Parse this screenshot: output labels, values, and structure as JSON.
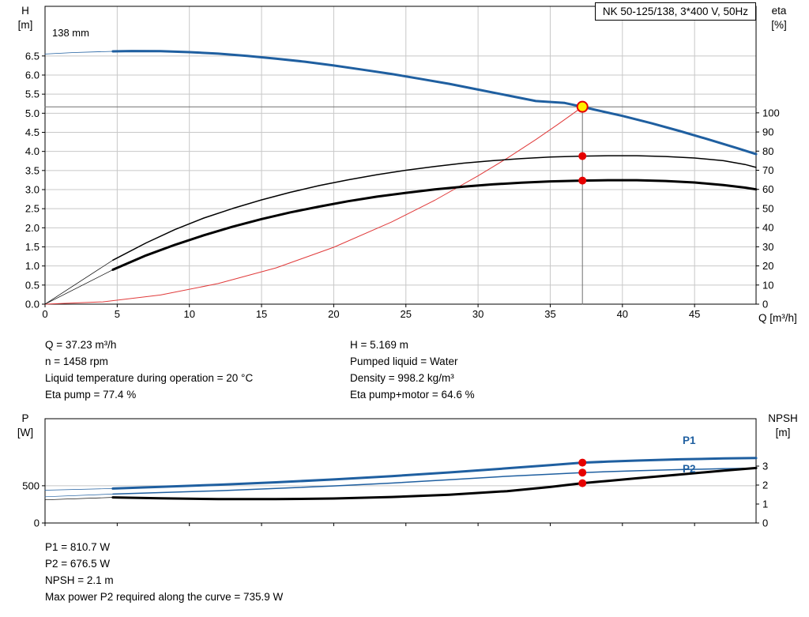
{
  "colors": {
    "pump_blue": "#1f5fa0",
    "curve_black": "#000000",
    "system_red": "#e03a3a",
    "dot_red": "#e60000",
    "duty_yellow": "#ffee00",
    "grid": "#c8c8c8",
    "axis": "#000000",
    "crosshair": "#707070"
  },
  "top_chart": {
    "impeller_label": "138 mm",
    "axis_left_title": [
      "H",
      "[m]"
    ],
    "axis_right_title": [
      "eta",
      "[%]"
    ],
    "axis_x_title": "Q [m³/h]"
  },
  "bottom_chart": {
    "axis_left_title": [
      "P",
      "[W]"
    ],
    "axis_right_title": [
      "NPSH",
      "[m]"
    ],
    "p1_label": "P1",
    "p2_label": "P2"
  },
  "info": {
    "left": [
      "Q = 37.23 m³/h",
      "n = 1458 rpm",
      "Liquid temperature during operation = 20 °C",
      "Eta pump = 77.4 %"
    ],
    "right": [
      "H = 5.169 m",
      "Pumped liquid = Water",
      "Density = 998.2 kg/m³",
      "Eta pump+motor = 64.6 %"
    ]
  },
  "results": [
    "P1 = 810.7 W",
    "P2 = 676.5 W",
    "NPSH = 2.1 m",
    "Max power P2 required along the curve = 735.9 W"
  ],
  "chart_data": [
    {
      "type": "line",
      "name": "qh-eta-chart",
      "title": "NK 50-125/138, 3*400 V, 50Hz",
      "xlabel": "Q [m³/h]",
      "ylabel_left": "H [m]",
      "ylabel_right": "eta [%]",
      "xlim": [
        0,
        49.26
      ],
      "ylim_left": [
        0,
        7.8
      ],
      "ylim_right": [
        0,
        155.7
      ],
      "duty_point": {
        "Q": 37.23,
        "H": 5.169,
        "eta_pump": 77.4,
        "eta_pump_motor": 64.6
      },
      "x_ticks": {
        "values": [
          0,
          5,
          10,
          15,
          20,
          25,
          30,
          35,
          40,
          45
        ],
        "labels": [
          "0",
          "5",
          "10",
          "15",
          "20",
          "25",
          "30",
          "35",
          "40",
          "45"
        ]
      },
      "y_ticks_left": {
        "values": [
          0,
          0.5,
          1,
          1.5,
          2,
          2.5,
          3,
          3.5,
          4,
          4.5,
          5,
          5.5,
          6,
          6.5
        ],
        "labels": [
          "0.0",
          "0.5",
          "1.0",
          "1.5",
          "2.0",
          "2.5",
          "3.0",
          "3.5",
          "4.0",
          "4.5",
          "5.0",
          "5.5",
          "6.0",
          "6.5"
        ]
      },
      "y_ticks_right": {
        "values": [
          0,
          10,
          20,
          30,
          40,
          50,
          60,
          70,
          80,
          90,
          100
        ],
        "labels": [
          "0",
          "10",
          "20",
          "30",
          "40",
          "50",
          "60",
          "70",
          "80",
          "90",
          "100"
        ]
      },
      "grid_x": [
        5,
        10,
        15,
        20,
        25,
        30,
        35,
        40,
        45
      ],
      "grid_y": [
        0.5,
        1,
        1.5,
        2,
        2.5,
        3,
        3.5,
        4,
        4.5,
        5,
        5.5,
        6,
        6.5
      ],
      "series": [
        {
          "name": "duty-vline",
          "axis": "left",
          "color": "crosshair",
          "width": 1,
          "points": [
            [
              37.23,
              0
            ],
            [
              37.23,
              5.169
            ]
          ]
        },
        {
          "name": "duty-hline",
          "axis": "left",
          "color": "crosshair",
          "width": 1,
          "points": [
            [
              0,
              5.169
            ],
            [
              49.26,
              5.169
            ]
          ]
        },
        {
          "name": "system-curve",
          "axis": "left",
          "color": "system_red",
          "width": 1,
          "points": [
            [
              0,
              0
            ],
            [
              4,
              0.06
            ],
            [
              8,
              0.24
            ],
            [
              12,
              0.54
            ],
            [
              16,
              0.95
            ],
            [
              20,
              1.49
            ],
            [
              24,
              2.15
            ],
            [
              27,
              2.72
            ],
            [
              30,
              3.36
            ],
            [
              32,
              3.82
            ],
            [
              34,
              4.31
            ],
            [
              35.5,
              4.7
            ],
            [
              36.5,
              4.97
            ],
            [
              37.23,
              5.169
            ]
          ]
        },
        {
          "name": "eta-pump-extension",
          "axis": "right",
          "color": "curve_black",
          "width": 0.7,
          "points": [
            [
              0,
              0
            ],
            [
              4.7,
              23
            ]
          ]
        },
        {
          "name": "eta-pump-curve",
          "axis": "right",
          "color": "curve_black",
          "width": 1.5,
          "points": [
            [
              4.7,
              23
            ],
            [
              7,
              32
            ],
            [
              9,
              39
            ],
            [
              11,
              45
            ],
            [
              13,
              50
            ],
            [
              15,
              54.5
            ],
            [
              17,
              58.5
            ],
            [
              19,
              62
            ],
            [
              21,
              65
            ],
            [
              23,
              67.7
            ],
            [
              25,
              70
            ],
            [
              27,
              72
            ],
            [
              29,
              73.7
            ],
            [
              31,
              75
            ],
            [
              33,
              76.1
            ],
            [
              35,
              76.9
            ],
            [
              37.23,
              77.4
            ],
            [
              39,
              77.6
            ],
            [
              41,
              77.6
            ],
            [
              43,
              77.2
            ],
            [
              45,
              76.4
            ],
            [
              47,
              75
            ],
            [
              48.5,
              73
            ],
            [
              49.26,
              71.5
            ]
          ]
        },
        {
          "name": "eta-pump-motor-extension",
          "axis": "right",
          "color": "curve_black",
          "width": 0.7,
          "points": [
            [
              0,
              0
            ],
            [
              4.7,
              18
            ]
          ]
        },
        {
          "name": "eta-pump-motor-curve",
          "axis": "right",
          "color": "curve_black",
          "width": 3,
          "points": [
            [
              4.7,
              18
            ],
            [
              7,
              25.5
            ],
            [
              9,
              31
            ],
            [
              11,
              36
            ],
            [
              13,
              40.5
            ],
            [
              15,
              44.5
            ],
            [
              17,
              48
            ],
            [
              19,
              51
            ],
            [
              21,
              53.8
            ],
            [
              23,
              56.2
            ],
            [
              25,
              58.2
            ],
            [
              27,
              60
            ],
            [
              29,
              61.4
            ],
            [
              31,
              62.6
            ],
            [
              33,
              63.5
            ],
            [
              35,
              64.2
            ],
            [
              37.23,
              64.6
            ],
            [
              39,
              64.8
            ],
            [
              41,
              64.8
            ],
            [
              43,
              64.4
            ],
            [
              45,
              63.6
            ],
            [
              47,
              62.3
            ],
            [
              48.5,
              60.9
            ],
            [
              49.26,
              60
            ]
          ]
        },
        {
          "name": "pump-curve-extension",
          "axis": "left",
          "color": "pump_blue",
          "width": 0.8,
          "points": [
            [
              0,
              6.55
            ],
            [
              2,
              6.59
            ],
            [
              4.7,
              6.62
            ]
          ]
        },
        {
          "name": "pump-curve-138mm",
          "axis": "left",
          "color": "pump_blue",
          "width": 3,
          "points": [
            [
              4.7,
              6.62
            ],
            [
              6,
              6.63
            ],
            [
              8,
              6.625
            ],
            [
              10,
              6.6
            ],
            [
              12,
              6.56
            ],
            [
              14,
              6.5
            ],
            [
              16,
              6.43
            ],
            [
              18,
              6.35
            ],
            [
              20,
              6.25
            ],
            [
              22,
              6.14
            ],
            [
              24,
              6.03
            ],
            [
              26,
              5.9
            ],
            [
              28,
              5.77
            ],
            [
              30,
              5.62
            ],
            [
              32,
              5.47
            ],
            [
              34,
              5.32
            ],
            [
              36,
              5.27
            ],
            [
              37.23,
              5.169
            ],
            [
              38,
              5.1
            ],
            [
              40,
              4.93
            ],
            [
              42,
              4.74
            ],
            [
              44,
              4.53
            ],
            [
              46,
              4.31
            ],
            [
              48,
              4.08
            ],
            [
              49.26,
              3.93
            ]
          ]
        }
      ],
      "markers": [
        {
          "name": "eta-pump-duty-dot",
          "axis": "right",
          "x": 37.23,
          "y": 77.4,
          "r": 5,
          "fill": "dot_red"
        },
        {
          "name": "eta-pump-motor-duty-dot",
          "axis": "right",
          "x": 37.23,
          "y": 64.6,
          "r": 5,
          "fill": "dot_red"
        },
        {
          "name": "duty-point-marker",
          "axis": "left",
          "x": 37.23,
          "y": 5.169,
          "r": 6.5,
          "fill": "duty_yellow",
          "stroke": "dot_red",
          "stroke_width": 2
        }
      ]
    },
    {
      "type": "line",
      "name": "power-npsh-chart",
      "title": "",
      "xlabel": "",
      "ylabel_left": "P [W]",
      "ylabel_right": "NPSH [m]",
      "xlim": [
        0,
        49.26
      ],
      "ylim_left": [
        0,
        1400
      ],
      "ylim_right": [
        0,
        5.5
      ],
      "duty_point": {
        "Q": 37.23,
        "P1": 810.7,
        "P2": 676.5,
        "NPSH": 2.1
      },
      "x_ticks": {
        "values": [
          0,
          5,
          10,
          15,
          20,
          25,
          30,
          35,
          40,
          45
        ],
        "labels": []
      },
      "y_ticks_left": {
        "values": [
          0,
          500
        ],
        "labels": [
          "0",
          "500"
        ]
      },
      "y_ticks_right": {
        "values": [
          0,
          1,
          2,
          3
        ],
        "labels": [
          "0",
          "1",
          "2",
          "3"
        ]
      },
      "grid_x": [],
      "grid_y": [
        500
      ],
      "series": [
        {
          "name": "p1-extension",
          "axis": "left",
          "color": "pump_blue",
          "width": 0.7,
          "points": [
            [
              0,
              440
            ],
            [
              4.7,
              462
            ]
          ]
        },
        {
          "name": "p2-extension",
          "axis": "left",
          "color": "pump_blue",
          "width": 0.7,
          "points": [
            [
              0,
              352
            ],
            [
              4.7,
              388
            ]
          ]
        },
        {
          "name": "npsh-extension",
          "axis": "right",
          "color": "curve_black",
          "width": 0.7,
          "points": [
            [
              0,
              1.22
            ],
            [
              4.7,
              1.35
            ]
          ]
        },
        {
          "name": "p2-curve",
          "axis": "left",
          "color": "pump_blue",
          "width": 1.5,
          "points": [
            [
              4.7,
              388
            ],
            [
              8,
              408
            ],
            [
              12,
              433
            ],
            [
              16,
              463
            ],
            [
              20,
              497
            ],
            [
              24,
              536
            ],
            [
              28,
              580
            ],
            [
              32,
              627
            ],
            [
              35,
              655
            ],
            [
              37.23,
              676.5
            ],
            [
              39,
              689
            ],
            [
              41,
              701
            ],
            [
              44,
              717
            ],
            [
              47,
              729
            ],
            [
              49.26,
              735.9
            ]
          ]
        },
        {
          "name": "p1-curve",
          "axis": "left",
          "color": "pump_blue",
          "width": 3,
          "points": [
            [
              4.7,
              462
            ],
            [
              8,
              485
            ],
            [
              12,
              513
            ],
            [
              16,
              546
            ],
            [
              20,
              584
            ],
            [
              24,
              629
            ],
            [
              28,
              679
            ],
            [
              32,
              734
            ],
            [
              35,
              777
            ],
            [
              37.23,
              810.7
            ],
            [
              39,
              824
            ],
            [
              41,
              838
            ],
            [
              44,
              855
            ],
            [
              47,
              866
            ],
            [
              49.26,
              872
            ]
          ]
        },
        {
          "name": "npsh-curve",
          "axis": "right",
          "color": "curve_black",
          "width": 3,
          "points": [
            [
              4.7,
              1.35
            ],
            [
              8,
              1.3
            ],
            [
              12,
              1.26
            ],
            [
              16,
              1.26
            ],
            [
              20,
              1.29
            ],
            [
              24,
              1.37
            ],
            [
              28,
              1.49
            ],
            [
              32,
              1.68
            ],
            [
              35,
              1.9
            ],
            [
              37.23,
              2.1
            ],
            [
              39,
              2.22
            ],
            [
              41,
              2.36
            ],
            [
              44,
              2.56
            ],
            [
              47,
              2.76
            ],
            [
              49.26,
              2.9
            ]
          ]
        }
      ],
      "markers": [
        {
          "name": "p1-duty-dot",
          "axis": "left",
          "x": 37.23,
          "y": 810.7,
          "r": 5,
          "fill": "dot_red"
        },
        {
          "name": "p2-duty-dot",
          "axis": "left",
          "x": 37.23,
          "y": 676.5,
          "r": 5,
          "fill": "dot_red"
        },
        {
          "name": "npsh-duty-dot",
          "axis": "right",
          "x": 37.23,
          "y": 2.1,
          "r": 5,
          "fill": "dot_red"
        }
      ]
    }
  ]
}
